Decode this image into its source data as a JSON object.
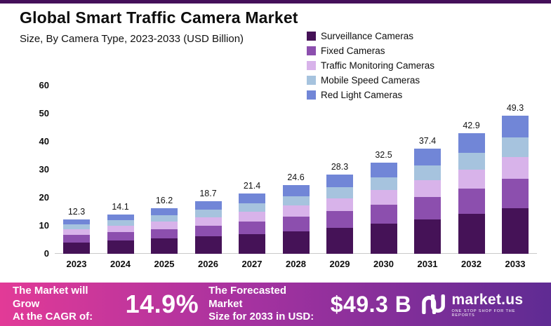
{
  "header": {
    "title": "Global Smart Traffic Camera Market",
    "subtitle": "Size, By Camera Type, 2023-2033 (USD Billion)"
  },
  "chart_data": {
    "type": "bar",
    "stacked": true,
    "title": "Global Smart Traffic Camera Market",
    "xlabel": "",
    "ylabel": "",
    "ylim": [
      0,
      60
    ],
    "yticks": [
      0,
      10,
      20,
      30,
      40,
      50,
      60
    ],
    "grid": false,
    "legend_position": "top-right",
    "categories": [
      "2023",
      "2024",
      "2025",
      "2026",
      "2027",
      "2028",
      "2029",
      "2030",
      "2031",
      "2032",
      "2033"
    ],
    "totals": [
      12.3,
      14.1,
      16.2,
      18.7,
      21.4,
      24.6,
      28.3,
      32.5,
      37.4,
      42.9,
      49.3
    ],
    "series": [
      {
        "name": "Surveillance Cameras",
        "color": "#451257",
        "values": [
          4.1,
          4.7,
          5.4,
          6.2,
          7.1,
          8.1,
          9.3,
          10.7,
          12.3,
          14.2,
          16.3
        ]
      },
      {
        "name": "Fixed Cameras",
        "color": "#8c4fae",
        "values": [
          2.6,
          3.0,
          3.4,
          3.9,
          4.5,
          5.2,
          5.9,
          6.8,
          7.9,
          9.0,
          10.4
        ]
      },
      {
        "name": "Traffic Monitoring Cameras",
        "color": "#d8b3ea",
        "values": [
          2.0,
          2.3,
          2.6,
          3.0,
          3.4,
          3.9,
          4.5,
          5.2,
          6.0,
          6.9,
          7.9
        ]
      },
      {
        "name": "Mobile Speed Cameras",
        "color": "#a6c3de",
        "values": [
          1.7,
          2.0,
          2.3,
          2.6,
          3.0,
          3.4,
          4.0,
          4.6,
          5.2,
          6.0,
          6.9
        ]
      },
      {
        "name": "Red Light Cameras",
        "color": "#7186d7",
        "values": [
          1.9,
          2.1,
          2.5,
          3.0,
          3.4,
          4.0,
          4.6,
          5.2,
          6.0,
          6.8,
          7.8
        ]
      }
    ]
  },
  "footer": {
    "cagr_label_line1": "The Market will Grow",
    "cagr_label_line2": "At the CAGR of:",
    "cagr_value": "14.9%",
    "forecast_label_line1": "The Forecasted Market",
    "forecast_label_line2": "Size for 2033 in USD:",
    "forecast_value": "$49.3 B",
    "brand_name": "market.us",
    "brand_tagline": "One Stop Shop For The Reports"
  }
}
